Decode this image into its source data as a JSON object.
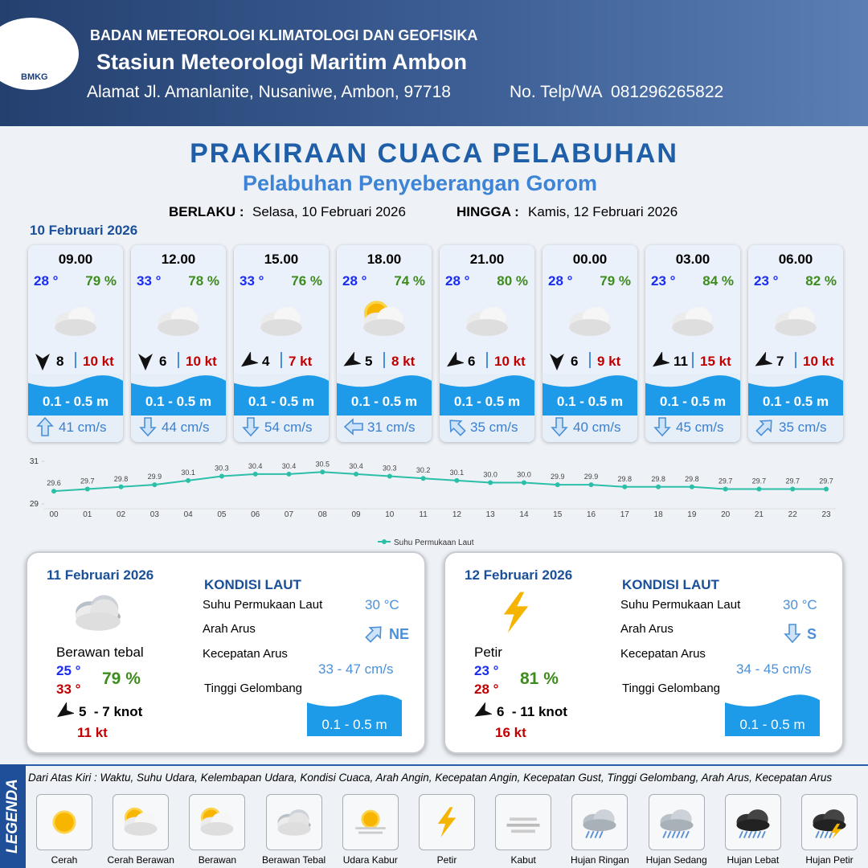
{
  "header": {
    "logo": "BMKG",
    "org": "BADAN METEOROLOGI KLIMATOLOGI DAN GEOFISIKA",
    "station": "Stasiun Meteorologi Maritim Ambon",
    "address": "Alamat Jl. Amanlanite, Nusaniwe, Ambon, 97718",
    "phone": "No. Telp/WA  081296265822"
  },
  "title": "PRAKIRAAN CUACA PELABUHAN",
  "subtitle": "Pelabuhan Penyeberangan Gorom",
  "validity": {
    "from_label": "BERLAKU :",
    "from": "Selasa, 10 Februari 2026",
    "to_label": "HINGGA :",
    "to": "Kamis, 12 Februari 2026"
  },
  "day1": {
    "date": "10 Februari 2026",
    "cards": [
      {
        "time": "09.00",
        "temp": "28 °",
        "humidity": "79 %",
        "wind": "8",
        "gust": "10 kt",
        "wave": "0.1 - 0.5 m",
        "current": "41 cm/s"
      },
      {
        "time": "12.00",
        "temp": "33 °",
        "humidity": "78 %",
        "wind": "6",
        "gust": "10 kt",
        "wave": "0.1 - 0.5 m",
        "current": "44 cm/s"
      },
      {
        "time": "15.00",
        "temp": "33 °",
        "humidity": "76 %",
        "wind": "4",
        "gust": "7 kt",
        "wave": "0.1 - 0.5 m",
        "current": "54 cm/s"
      },
      {
        "time": "18.00",
        "temp": "28 °",
        "humidity": "74 %",
        "wind": "5",
        "gust": "8 kt",
        "wave": "0.1 - 0.5 m",
        "current": "31 cm/s"
      },
      {
        "time": "21.00",
        "temp": "28 °",
        "humidity": "80 %",
        "wind": "6",
        "gust": "10 kt",
        "wave": "0.1 - 0.5 m",
        "current": "35 cm/s"
      },
      {
        "time": "00.00",
        "temp": "28 °",
        "humidity": "79 %",
        "wind": "6",
        "gust": "9 kt",
        "wave": "0.1 - 0.5 m",
        "current": "40 cm/s"
      },
      {
        "time": "03.00",
        "temp": "23 °",
        "humidity": "84 %",
        "wind": "11",
        "gust": "15 kt",
        "wave": "0.1 - 0.5 m",
        "current": "45 cm/s"
      },
      {
        "time": "06.00",
        "temp": "23 °",
        "humidity": "82 %",
        "wind": "7",
        "gust": "10 kt",
        "wave": "0.1 - 0.5 m",
        "current": "35 cm/s"
      }
    ]
  },
  "chart_data": {
    "type": "line",
    "categories": [
      "00",
      "01",
      "02",
      "03",
      "04",
      "05",
      "06",
      "07",
      "08",
      "09",
      "10",
      "11",
      "12",
      "13",
      "14",
      "15",
      "16",
      "17",
      "18",
      "19",
      "20",
      "21",
      "22",
      "23"
    ],
    "series": [
      {
        "name": "Suhu Permukaan Laut",
        "color": "#2bbfa8",
        "values": [
          29.6,
          29.7,
          29.8,
          29.9,
          30.1,
          30.3,
          30.4,
          30.4,
          30.5,
          30.4,
          30.3,
          30.2,
          30.1,
          30.0,
          30.0,
          29.9,
          29.9,
          29.8,
          29.8,
          29.8,
          29.7,
          29.7,
          29.7,
          29.7
        ],
        "value_labels": [
          "29.6",
          "29.7",
          "29.8",
          "29.9",
          "30.1",
          "30.3",
          "30.4",
          "30.4",
          "30.5",
          "30.4",
          "30.3",
          "30.2",
          "30.1",
          "30.0",
          "30.0",
          "29.9",
          "29.9",
          "29.8",
          "29.8",
          "29.8",
          "29.7",
          "29.7",
          "29.7",
          "29.7"
        ]
      }
    ],
    "ylim": [
      29,
      31
    ],
    "yticks": [
      29,
      31
    ]
  },
  "days": [
    {
      "date": "11 Februari 2026",
      "condition": "Berawan tebal",
      "temp_min": "25 °",
      "temp_max": "33 °",
      "humidity": "79 %",
      "wind": "5  - 7 knot",
      "gust": "11 kt",
      "section": "KONDISI LAUT",
      "sst_label": "Suhu Permukaan Laut",
      "sst": "30 °C",
      "dir_label": "Arah Arus",
      "dir": "NE",
      "speed_label": "Kecepatan Arus",
      "speed": "33 - 47 cm/s",
      "wave_label": "Tinggi Gelombang",
      "wave": "0.1 - 0.5 m"
    },
    {
      "date": "12 Februari 2026",
      "condition": "Petir",
      "temp_min": "23 °",
      "temp_max": "28 °",
      "humidity": "81 %",
      "wind": "6  - 11 knot",
      "gust": "16 kt",
      "section": "KONDISI LAUT",
      "sst_label": "Suhu Permukaan Laut",
      "sst": "30 °C",
      "dir_label": "Arah Arus",
      "dir": "S",
      "speed_label": "Kecepatan Arus",
      "speed": "34 - 45 cm/s",
      "wave_label": "Tinggi Gelombang",
      "wave": "0.1 - 0.5 m"
    }
  ],
  "legend": {
    "title": "LEGENDA",
    "note": "Dari Atas Kiri : Waktu, Suhu Udara, Kelembapan Udara, Kondisi Cuaca, Arah Angin, Kecepatan Angin, Kecepatan Gust, Tinggi Gelombang, Arah Arus, Kecepatan Arus",
    "items": [
      "Cerah",
      "Cerah Berawan",
      "Berawan",
      "Berawan Tebal",
      "Udara Kabur",
      "Petir",
      "Kabut",
      "Hujan Ringan",
      "Hujan Sedang",
      "Hujan Lebat",
      "Hujan Petir"
    ]
  }
}
